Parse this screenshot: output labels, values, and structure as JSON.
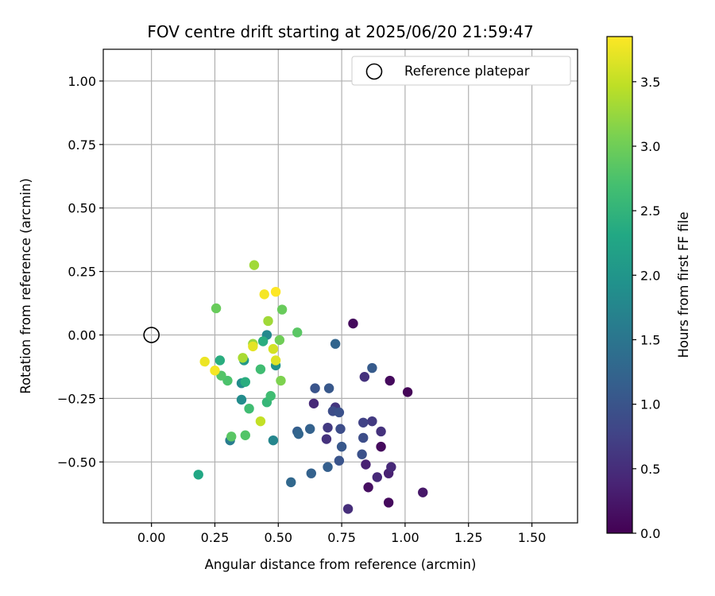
{
  "chart_data": {
    "type": "scatter",
    "title": "FOV centre drift starting at 2025/06/20 21:59:47",
    "xlabel": "Angular distance from reference (arcmin)",
    "ylabel": "Rotation from reference (arcmin)",
    "xlim": [
      -0.19,
      1.68
    ],
    "ylim": [
      -0.74,
      1.125
    ],
    "xticks": [
      0.0,
      0.25,
      0.5,
      0.75,
      1.0,
      1.25,
      1.5
    ],
    "xtick_labels": [
      "0.00",
      "0.25",
      "0.50",
      "0.75",
      "1.00",
      "1.25",
      "1.50"
    ],
    "yticks": [
      -0.5,
      -0.25,
      0.0,
      0.25,
      0.5,
      0.75,
      1.0
    ],
    "ytick_labels": [
      "−0.50",
      "−0.25",
      "0.00",
      "0.25",
      "0.50",
      "0.75",
      "1.00"
    ],
    "grid": true,
    "legend": {
      "placement": "top-right",
      "entries": [
        {
          "label": "Reference platepar",
          "marker": "open-circle"
        }
      ]
    },
    "reference_point": {
      "label": "Reference platepar",
      "x": 0.0,
      "y": 0.0
    },
    "colorbar": {
      "label": "Hours from first FF file",
      "colormap": "viridis",
      "range": [
        0.0,
        3.85
      ],
      "ticks": [
        0.0,
        0.5,
        1.0,
        1.5,
        2.0,
        2.5,
        3.0,
        3.5
      ],
      "tick_labels": [
        "0.0",
        "0.5",
        "1.0",
        "1.5",
        "2.0",
        "2.5",
        "3.0",
        "3.5"
      ]
    },
    "series": [
      {
        "marker": "filled-circle",
        "points": [
          {
            "x": 0.795,
            "y": 0.045,
            "hours": 0.1
          },
          {
            "x": 0.94,
            "y": -0.18,
            "hours": 0.1
          },
          {
            "x": 1.01,
            "y": -0.225,
            "hours": 0.05
          },
          {
            "x": 0.905,
            "y": -0.44,
            "hours": 0.1
          },
          {
            "x": 0.855,
            "y": -0.6,
            "hours": 0.15
          },
          {
            "x": 0.935,
            "y": -0.66,
            "hours": 0.1
          },
          {
            "x": 1.07,
            "y": -0.62,
            "hours": 0.25
          },
          {
            "x": 0.935,
            "y": -0.545,
            "hours": 0.35
          },
          {
            "x": 0.945,
            "y": -0.52,
            "hours": 0.45
          },
          {
            "x": 0.89,
            "y": -0.56,
            "hours": 0.45
          },
          {
            "x": 0.845,
            "y": -0.51,
            "hours": 0.35
          },
          {
            "x": 0.905,
            "y": -0.38,
            "hours": 0.55
          },
          {
            "x": 0.87,
            "y": -0.34,
            "hours": 0.65
          },
          {
            "x": 0.84,
            "y": -0.165,
            "hours": 0.55
          },
          {
            "x": 0.775,
            "y": -0.685,
            "hours": 0.5
          },
          {
            "x": 0.64,
            "y": -0.27,
            "hours": 0.45
          },
          {
            "x": 0.69,
            "y": -0.41,
            "hours": 0.55
          },
          {
            "x": 0.695,
            "y": -0.365,
            "hours": 0.65
          },
          {
            "x": 0.725,
            "y": -0.285,
            "hours": 0.6
          },
          {
            "x": 0.835,
            "y": -0.345,
            "hours": 0.75
          },
          {
            "x": 0.835,
            "y": -0.405,
            "hours": 0.9
          },
          {
            "x": 0.83,
            "y": -0.47,
            "hours": 0.95
          },
          {
            "x": 0.87,
            "y": -0.13,
            "hours": 1.1
          },
          {
            "x": 0.715,
            "y": -0.3,
            "hours": 0.9
          },
          {
            "x": 0.74,
            "y": -0.305,
            "hours": 0.95
          },
          {
            "x": 0.745,
            "y": -0.37,
            "hours": 0.9
          },
          {
            "x": 0.75,
            "y": -0.44,
            "hours": 1.05
          },
          {
            "x": 0.74,
            "y": -0.495,
            "hours": 1.0
          },
          {
            "x": 0.695,
            "y": -0.52,
            "hours": 1.15
          },
          {
            "x": 0.7,
            "y": -0.21,
            "hours": 1.05
          },
          {
            "x": 0.645,
            "y": -0.21,
            "hours": 1.0
          },
          {
            "x": 0.725,
            "y": -0.035,
            "hours": 1.25
          },
          {
            "x": 0.575,
            "y": -0.38,
            "hours": 1.15
          },
          {
            "x": 0.58,
            "y": -0.39,
            "hours": 1.25
          },
          {
            "x": 0.625,
            "y": -0.37,
            "hours": 1.2
          },
          {
            "x": 0.63,
            "y": -0.545,
            "hours": 1.2
          },
          {
            "x": 0.55,
            "y": -0.58,
            "hours": 1.3
          },
          {
            "x": 0.31,
            "y": -0.415,
            "hours": 1.6
          },
          {
            "x": 0.48,
            "y": -0.415,
            "hours": 1.75
          },
          {
            "x": 0.455,
            "y": 0.0,
            "hours": 1.8
          },
          {
            "x": 0.49,
            "y": -0.12,
            "hours": 1.95
          },
          {
            "x": 0.355,
            "y": -0.19,
            "hours": 1.85
          },
          {
            "x": 0.355,
            "y": -0.255,
            "hours": 1.85
          },
          {
            "x": 0.365,
            "y": -0.1,
            "hours": 2.05
          },
          {
            "x": 0.185,
            "y": -0.55,
            "hours": 2.3
          },
          {
            "x": 0.27,
            "y": -0.1,
            "hours": 2.4
          },
          {
            "x": 0.37,
            "y": -0.185,
            "hours": 2.4
          },
          {
            "x": 0.44,
            "y": -0.025,
            "hours": 2.4
          },
          {
            "x": 0.455,
            "y": -0.265,
            "hours": 2.55
          },
          {
            "x": 0.47,
            "y": -0.24,
            "hours": 2.65
          },
          {
            "x": 0.43,
            "y": -0.135,
            "hours": 2.65
          },
          {
            "x": 0.385,
            "y": -0.29,
            "hours": 2.65
          },
          {
            "x": 0.3,
            "y": -0.18,
            "hours": 2.75
          },
          {
            "x": 0.275,
            "y": -0.16,
            "hours": 2.8
          },
          {
            "x": 0.37,
            "y": -0.395,
            "hours": 2.8
          },
          {
            "x": 0.315,
            "y": -0.4,
            "hours": 2.85
          },
          {
            "x": 0.255,
            "y": 0.105,
            "hours": 2.95
          },
          {
            "x": 0.515,
            "y": 0.1,
            "hours": 2.95
          },
          {
            "x": 0.575,
            "y": 0.01,
            "hours": 2.85
          },
          {
            "x": 0.505,
            "y": -0.02,
            "hours": 3.0
          },
          {
            "x": 0.51,
            "y": -0.18,
            "hours": 3.1
          },
          {
            "x": 0.4,
            "y": -0.035,
            "hours": 3.25
          },
          {
            "x": 0.405,
            "y": 0.275,
            "hours": 3.3
          },
          {
            "x": 0.46,
            "y": 0.055,
            "hours": 3.3
          },
          {
            "x": 0.36,
            "y": -0.09,
            "hours": 3.35
          },
          {
            "x": 0.43,
            "y": -0.34,
            "hours": 3.5
          },
          {
            "x": 0.48,
            "y": -0.055,
            "hours": 3.6
          },
          {
            "x": 0.4,
            "y": -0.045,
            "hours": 3.7
          },
          {
            "x": 0.49,
            "y": -0.1,
            "hours": 3.65
          },
          {
            "x": 0.21,
            "y": -0.105,
            "hours": 3.75
          },
          {
            "x": 0.25,
            "y": -0.14,
            "hours": 3.8
          },
          {
            "x": 0.445,
            "y": 0.16,
            "hours": 3.8
          },
          {
            "x": 0.49,
            "y": 0.17,
            "hours": 3.85
          }
        ]
      }
    ]
  },
  "colors": {
    "grid": "#b0b0b0",
    "axes": "#000000",
    "background": "#ffffff",
    "legend_border": "#cccccc"
  }
}
